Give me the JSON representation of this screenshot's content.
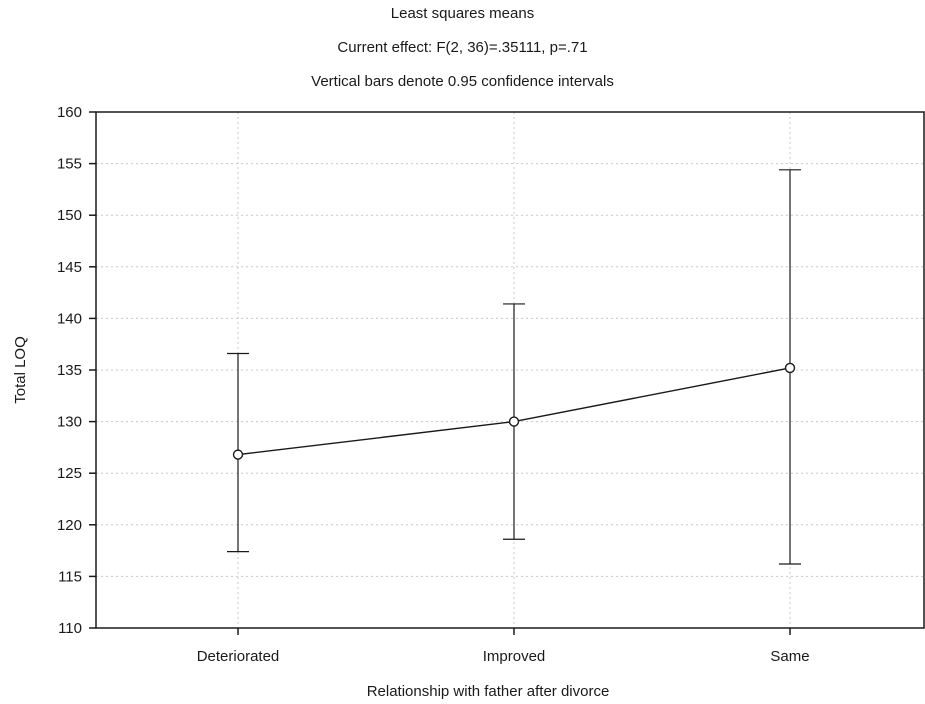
{
  "chart_data": {
    "type": "line",
    "title": "Least squares means",
    "subtitle": "Current effect: F(2, 36)=.35111, p=.71",
    "note": "Vertical bars denote 0.95 confidence intervals",
    "xlabel": "Relationship with father after divorce",
    "ylabel": "Total LOQ",
    "categories": [
      "Deteriorated",
      "Improved",
      "Same"
    ],
    "values": [
      126.8,
      130.0,
      135.2
    ],
    "ci_lower": [
      117.4,
      118.6,
      116.2
    ],
    "ci_upper": [
      136.6,
      141.4,
      154.4
    ],
    "ylim": [
      110,
      160
    ],
    "yticks": [
      110,
      115,
      120,
      125,
      130,
      135,
      140,
      145,
      150,
      155,
      160
    ],
    "grid": true,
    "legend": "none"
  },
  "colors": {
    "line": "#1a1a1a",
    "grid": "#c8c8c8",
    "marker_fill": "#ffffff",
    "background": "#ffffff"
  }
}
